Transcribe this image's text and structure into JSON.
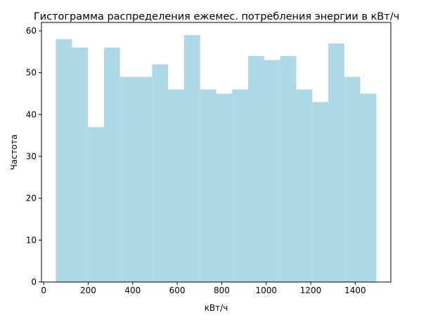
{
  "chart_data": {
    "type": "bar",
    "title": "Гистограмма распределения ежемес. потребления энергии в кВт/ч",
    "xlabel": "кВт/ч",
    "ylabel": "Частота",
    "bin_edges": [
      55,
      127,
      199,
      271,
      343,
      415,
      487,
      559,
      631,
      703,
      775,
      847,
      919,
      991,
      1063,
      1135,
      1207,
      1279,
      1351,
      1423,
      1495
    ],
    "values": [
      58,
      56,
      37,
      56,
      49,
      49,
      52,
      46,
      59,
      46,
      45,
      46,
      54,
      53,
      54,
      46,
      43,
      57,
      49,
      45
    ],
    "xlim": [
      -10,
      1560
    ],
    "ylim": [
      0,
      62
    ],
    "xticks": [
      0,
      200,
      400,
      600,
      800,
      1000,
      1200,
      1400
    ],
    "yticks": [
      0,
      10,
      20,
      30,
      40,
      50,
      60
    ],
    "grid": false,
    "bar_color": "#add8e6"
  }
}
